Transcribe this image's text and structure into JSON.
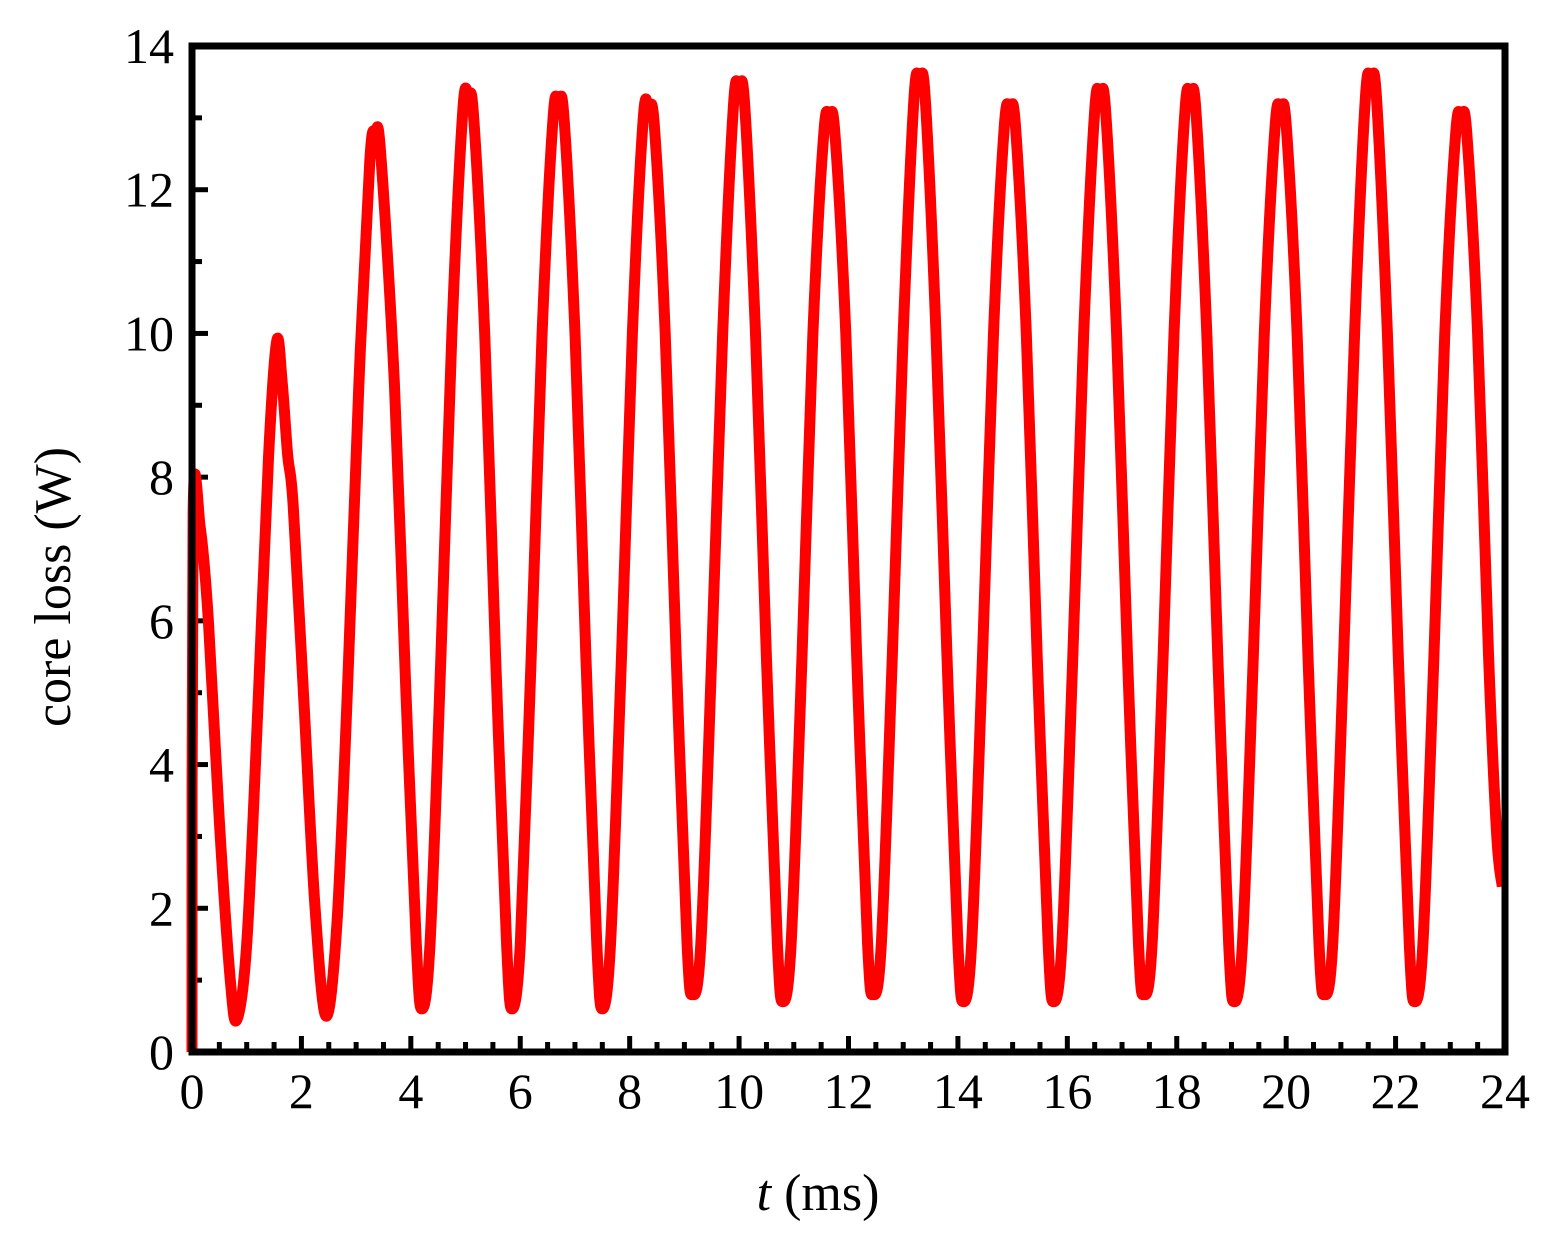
{
  "chart_data": {
    "type": "line",
    "xlabel_italic": "t",
    "xlabel_rest": " (ms)",
    "ylabel": "core loss (W)",
    "xlim": [
      0,
      24
    ],
    "ylim": [
      0,
      14
    ],
    "xticks": [
      0,
      2,
      4,
      6,
      8,
      10,
      12,
      14,
      16,
      18,
      20,
      22,
      24
    ],
    "yticks": [
      0,
      2,
      4,
      6,
      8,
      10,
      12,
      14
    ],
    "x_minor_step": 0.5,
    "y_minor_step": 1,
    "grid": false,
    "legend": "none",
    "series": [
      {
        "color": "#ff0000",
        "points": [
          [
            0.0,
            0.0
          ],
          [
            0.02,
            7.5
          ],
          [
            0.15,
            7.3
          ],
          [
            0.3,
            6.0
          ],
          [
            0.5,
            3.2
          ],
          [
            0.7,
            1.0
          ],
          [
            0.82,
            0.45
          ],
          [
            1.0,
            1.5
          ],
          [
            1.2,
            4.7
          ],
          [
            1.4,
            8.3
          ],
          [
            1.55,
            9.9
          ],
          [
            1.65,
            9.3
          ],
          [
            1.75,
            8.3
          ],
          [
            1.85,
            7.6
          ],
          [
            2.05,
            4.8
          ],
          [
            2.25,
            2.0
          ],
          [
            2.45,
            0.5
          ],
          [
            2.65,
            1.8
          ],
          [
            2.85,
            5.2
          ],
          [
            3.05,
            9.3
          ],
          [
            3.25,
            12.4
          ],
          [
            3.35,
            12.8
          ],
          [
            3.45,
            12.5
          ],
          [
            3.7,
            9.3
          ],
          [
            3.9,
            5.2
          ],
          [
            4.1,
            1.5
          ],
          [
            4.2,
            0.6
          ],
          [
            4.35,
            1.5
          ],
          [
            4.55,
            5.5
          ],
          [
            4.75,
            10.0
          ],
          [
            4.95,
            13.1
          ],
          [
            5.05,
            13.3
          ],
          [
            5.15,
            13.0
          ],
          [
            5.35,
            10.0
          ],
          [
            5.55,
            5.5
          ],
          [
            5.75,
            1.5
          ],
          [
            5.85,
            0.6
          ],
          [
            6.0,
            1.5
          ],
          [
            6.2,
            5.5
          ],
          [
            6.4,
            10.0
          ],
          [
            6.6,
            13.0
          ],
          [
            6.7,
            13.2
          ],
          [
            6.8,
            13.0
          ],
          [
            7.0,
            10.0
          ],
          [
            7.2,
            5.5
          ],
          [
            7.4,
            1.5
          ],
          [
            7.5,
            0.6
          ],
          [
            7.65,
            1.5
          ],
          [
            7.85,
            5.5
          ],
          [
            8.05,
            10.0
          ],
          [
            8.25,
            13.0
          ],
          [
            8.35,
            13.1
          ],
          [
            8.45,
            12.9
          ],
          [
            8.65,
            10.0
          ],
          [
            8.85,
            5.5
          ],
          [
            9.05,
            1.5
          ],
          [
            9.15,
            0.8
          ],
          [
            9.3,
            1.5
          ],
          [
            9.5,
            5.5
          ],
          [
            9.7,
            10.0
          ],
          [
            9.9,
            13.2
          ],
          [
            10.0,
            13.4
          ],
          [
            10.1,
            13.2
          ],
          [
            10.3,
            10.0
          ],
          [
            10.5,
            5.5
          ],
          [
            10.7,
            1.5
          ],
          [
            10.8,
            0.7
          ],
          [
            10.95,
            1.5
          ],
          [
            11.15,
            5.5
          ],
          [
            11.35,
            10.0
          ],
          [
            11.55,
            12.8
          ],
          [
            11.65,
            13.0
          ],
          [
            11.75,
            12.8
          ],
          [
            11.95,
            10.0
          ],
          [
            12.15,
            5.5
          ],
          [
            12.35,
            1.5
          ],
          [
            12.45,
            0.8
          ],
          [
            12.6,
            1.5
          ],
          [
            12.8,
            5.5
          ],
          [
            13.0,
            10.0
          ],
          [
            13.2,
            13.3
          ],
          [
            13.3,
            13.5
          ],
          [
            13.4,
            13.3
          ],
          [
            13.6,
            10.0
          ],
          [
            13.8,
            5.5
          ],
          [
            14.0,
            1.5
          ],
          [
            14.1,
            0.7
          ],
          [
            14.25,
            1.5
          ],
          [
            14.45,
            5.5
          ],
          [
            14.65,
            10.0
          ],
          [
            14.85,
            12.9
          ],
          [
            14.95,
            13.1
          ],
          [
            15.05,
            12.9
          ],
          [
            15.25,
            10.0
          ],
          [
            15.45,
            5.5
          ],
          [
            15.65,
            1.5
          ],
          [
            15.75,
            0.7
          ],
          [
            15.9,
            1.5
          ],
          [
            16.1,
            5.5
          ],
          [
            16.3,
            10.0
          ],
          [
            16.5,
            13.1
          ],
          [
            16.6,
            13.3
          ],
          [
            16.7,
            13.1
          ],
          [
            16.9,
            10.0
          ],
          [
            17.1,
            5.5
          ],
          [
            17.3,
            1.5
          ],
          [
            17.4,
            0.8
          ],
          [
            17.55,
            1.5
          ],
          [
            17.75,
            5.5
          ],
          [
            17.95,
            10.0
          ],
          [
            18.15,
            13.1
          ],
          [
            18.25,
            13.3
          ],
          [
            18.35,
            13.1
          ],
          [
            18.55,
            10.0
          ],
          [
            18.75,
            5.5
          ],
          [
            18.95,
            1.5
          ],
          [
            19.05,
            0.7
          ],
          [
            19.2,
            1.5
          ],
          [
            19.4,
            5.5
          ],
          [
            19.6,
            10.0
          ],
          [
            19.8,
            12.9
          ],
          [
            19.9,
            13.1
          ],
          [
            20.0,
            12.9
          ],
          [
            20.2,
            10.0
          ],
          [
            20.4,
            5.5
          ],
          [
            20.6,
            1.5
          ],
          [
            20.7,
            0.8
          ],
          [
            20.85,
            1.5
          ],
          [
            21.05,
            5.5
          ],
          [
            21.25,
            10.0
          ],
          [
            21.45,
            13.3
          ],
          [
            21.55,
            13.5
          ],
          [
            21.65,
            13.3
          ],
          [
            21.85,
            10.0
          ],
          [
            22.05,
            5.5
          ],
          [
            22.25,
            1.5
          ],
          [
            22.35,
            0.7
          ],
          [
            22.5,
            1.5
          ],
          [
            22.7,
            5.5
          ],
          [
            22.9,
            10.0
          ],
          [
            23.1,
            12.8
          ],
          [
            23.2,
            13.0
          ],
          [
            23.3,
            12.8
          ],
          [
            23.5,
            10.0
          ],
          [
            23.7,
            5.5
          ],
          [
            23.85,
            3.0
          ],
          [
            23.95,
            2.3
          ]
        ]
      }
    ]
  }
}
